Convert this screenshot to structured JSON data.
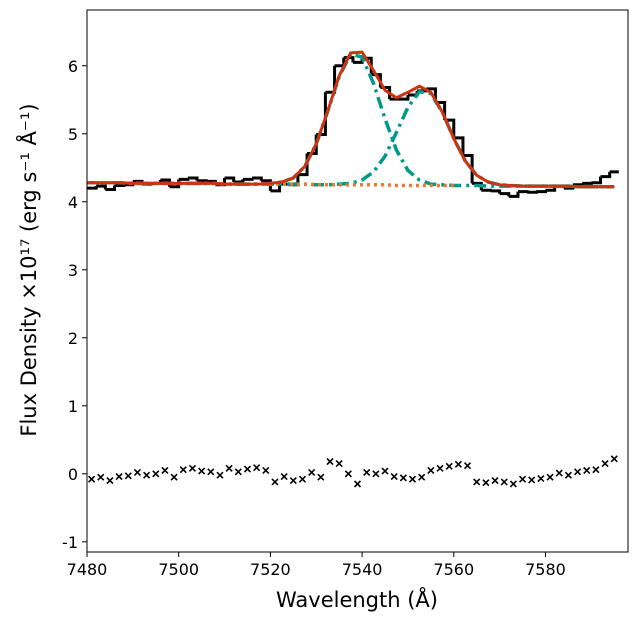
{
  "chart_data": {
    "type": "line",
    "xlabel": "Wavelength (Å)",
    "ylabel": "Flux Density ×10¹⁷ (erg s⁻¹ Å⁻¹)",
    "xlim": [
      7480,
      7598
    ],
    "ylim": [
      -1.15,
      6.82
    ],
    "xticks": [
      7480,
      7500,
      7520,
      7540,
      7560,
      7580
    ],
    "yticks": [
      -1,
      0,
      1,
      2,
      3,
      4,
      5,
      6
    ],
    "grid": false,
    "series": [
      {
        "style": "steps",
        "color": "#000000",
        "x": [
          7481,
          7483,
          7485,
          7487,
          7489,
          7491,
          7493,
          7495,
          7497,
          7499,
          7501,
          7503,
          7505,
          7507,
          7509,
          7511,
          7513,
          7515,
          7517,
          7519,
          7521,
          7523,
          7525,
          7527,
          7529,
          7531,
          7533,
          7535,
          7537,
          7539,
          7541,
          7543,
          7545,
          7547,
          7549,
          7551,
          7553,
          7555,
          7557,
          7559,
          7561,
          7563,
          7565,
          7567,
          7569,
          7571,
          7573,
          7575,
          7577,
          7579,
          7581,
          7583,
          7585,
          7587,
          7589,
          7591,
          7593,
          7595
        ],
        "values": [
          4.2,
          4.23,
          4.18,
          4.24,
          4.25,
          4.3,
          4.26,
          4.27,
          4.32,
          4.22,
          4.33,
          4.35,
          4.31,
          4.3,
          4.25,
          4.35,
          4.29,
          4.33,
          4.35,
          4.31,
          4.16,
          4.26,
          4.25,
          4.4,
          4.71,
          4.99,
          5.61,
          6.0,
          6.12,
          6.05,
          6.11,
          5.87,
          5.68,
          5.51,
          5.51,
          5.57,
          5.63,
          5.66,
          5.46,
          5.2,
          4.94,
          4.68,
          4.27,
          4.17,
          4.16,
          4.12,
          4.08,
          4.15,
          4.14,
          4.15,
          4.17,
          4.23,
          4.2,
          4.25,
          4.27,
          4.28,
          4.37,
          4.44
        ]
      },
      {
        "style": "dashdot",
        "color": "#009988",
        "x": [
          7480,
          7482.5,
          7485,
          7487.5,
          7490,
          7492.5,
          7495,
          7497.5,
          7500,
          7502.5,
          7505,
          7507.5,
          7510,
          7512.5,
          7515,
          7517.5,
          7520,
          7522.5,
          7525,
          7527.5,
          7530,
          7532.5,
          7535,
          7537.5,
          7540,
          7542.5,
          7545,
          7547.5,
          7550,
          7552.5,
          7555,
          7557.5,
          7560,
          7562.5,
          7565,
          7567.5,
          7570,
          7572.5,
          7575,
          7577.5,
          7580,
          7582.5,
          7585,
          7587.5,
          7590,
          7592.5,
          7595
        ],
        "values": [
          4.28,
          4.28,
          4.28,
          4.28,
          4.27,
          4.27,
          4.27,
          4.27,
          4.27,
          4.27,
          4.27,
          4.27,
          4.26,
          4.26,
          4.26,
          4.26,
          4.27,
          4.29,
          4.35,
          4.52,
          4.85,
          5.33,
          5.84,
          6.17,
          6.13,
          5.74,
          5.22,
          4.76,
          4.46,
          4.32,
          4.26,
          4.25,
          4.24,
          4.24,
          4.24,
          4.23,
          4.23,
          4.23,
          4.23,
          4.23,
          4.23,
          4.23,
          4.23,
          4.22,
          4.22,
          4.22,
          4.22
        ]
      },
      {
        "style": "dashdot",
        "color": "#009988",
        "x": [
          7480,
          7482.5,
          7485,
          7487.5,
          7490,
          7492.5,
          7495,
          7497.5,
          7500,
          7502.5,
          7505,
          7507.5,
          7510,
          7512.5,
          7515,
          7517.5,
          7520,
          7522.5,
          7525,
          7527.5,
          7530,
          7532.5,
          7535,
          7537.5,
          7540,
          7542.5,
          7545,
          7547.5,
          7550,
          7552.5,
          7555,
          7557.5,
          7560,
          7562.5,
          7565,
          7567.5,
          7570,
          7572.5,
          7575,
          7577.5,
          7580,
          7582.5,
          7585,
          7587.5,
          7590,
          7592.5,
          7595
        ],
        "values": [
          4.28,
          4.28,
          4.28,
          4.28,
          4.27,
          4.27,
          4.27,
          4.27,
          4.27,
          4.27,
          4.27,
          4.27,
          4.26,
          4.26,
          4.26,
          4.26,
          4.26,
          4.26,
          4.26,
          4.26,
          4.25,
          4.25,
          4.26,
          4.27,
          4.32,
          4.44,
          4.67,
          5.02,
          5.39,
          5.62,
          5.59,
          5.32,
          4.93,
          4.6,
          4.39,
          4.29,
          4.25,
          4.24,
          4.23,
          4.23,
          4.23,
          4.23,
          4.23,
          4.22,
          4.22,
          4.22,
          4.22
        ]
      },
      {
        "style": "dotted",
        "color": "#ee7733",
        "x": [
          7480,
          7482.5,
          7485,
          7487.5,
          7490,
          7492.5,
          7495,
          7497.5,
          7500,
          7502.5,
          7505,
          7507.5,
          7510,
          7512.5,
          7515,
          7517.5,
          7520,
          7522.5,
          7525,
          7527.5,
          7530,
          7532.5,
          7535,
          7537.5,
          7540,
          7542.5,
          7545,
          7547.5,
          7550,
          7552.5,
          7555,
          7557.5,
          7560,
          7562.5,
          7565,
          7567.5,
          7570,
          7572.5,
          7575,
          7577.5,
          7580,
          7582.5,
          7585,
          7587.5,
          7590,
          7592.5,
          7595
        ],
        "values": [
          4.28,
          4.28,
          4.28,
          4.28,
          4.27,
          4.27,
          4.27,
          4.27,
          4.27,
          4.27,
          4.27,
          4.27,
          4.26,
          4.26,
          4.26,
          4.26,
          4.26,
          4.26,
          4.26,
          4.26,
          4.25,
          4.25,
          4.25,
          4.25,
          4.25,
          4.25,
          4.25,
          4.24,
          4.24,
          4.24,
          4.24,
          4.24,
          4.24,
          null,
          null,
          null,
          null,
          null,
          null,
          null,
          null,
          null,
          null,
          null,
          null,
          null,
          null
        ]
      },
      {
        "style": "solid",
        "color": "#cc3311",
        "x": [
          7480,
          7482.5,
          7485,
          7487.5,
          7490,
          7492.5,
          7495,
          7497.5,
          7500,
          7502.5,
          7505,
          7507.5,
          7510,
          7512.5,
          7515,
          7517.5,
          7520,
          7522.5,
          7525,
          7527.5,
          7530,
          7532.5,
          7535,
          7537.5,
          7540,
          7542.5,
          7545,
          7547.5,
          7550,
          7552.5,
          7555,
          7557.5,
          7560,
          7562.5,
          7565,
          7567.5,
          7570,
          7572.5,
          7575,
          7577.5,
          7580,
          7582.5,
          7585,
          7587.5,
          7590,
          7592.5,
          7595
        ],
        "values": [
          4.28,
          4.28,
          4.28,
          4.28,
          4.27,
          4.27,
          4.27,
          4.27,
          4.27,
          4.27,
          4.27,
          4.27,
          4.26,
          4.26,
          4.26,
          4.26,
          4.27,
          4.29,
          4.35,
          4.52,
          4.85,
          5.33,
          5.85,
          6.19,
          6.2,
          5.93,
          5.64,
          5.53,
          5.61,
          5.7,
          5.61,
          5.32,
          4.93,
          4.6,
          4.39,
          4.29,
          4.25,
          4.24,
          4.23,
          4.23,
          4.23,
          4.23,
          4.23,
          4.22,
          4.22,
          4.22,
          4.22
        ]
      },
      {
        "style": "markers",
        "color": "#000000",
        "x": [
          7481,
          7483,
          7485,
          7487,
          7489,
          7491,
          7493,
          7495,
          7497,
          7499,
          7501,
          7503,
          7505,
          7507,
          7509,
          7511,
          7513,
          7515,
          7517,
          7519,
          7521,
          7523,
          7525,
          7527,
          7529,
          7531,
          7533,
          7535,
          7537,
          7539,
          7541,
          7543,
          7545,
          7547,
          7549,
          7551,
          7553,
          7555,
          7557,
          7559,
          7561,
          7563,
          7565,
          7567,
          7569,
          7571,
          7573,
          7575,
          7577,
          7579,
          7581,
          7583,
          7585,
          7587,
          7589,
          7591,
          7593,
          7595
        ],
        "values": [
          -0.08,
          -0.05,
          -0.1,
          -0.04,
          -0.03,
          0.02,
          -0.02,
          0.0,
          0.05,
          -0.05,
          0.06,
          0.08,
          0.04,
          0.03,
          -0.02,
          0.08,
          0.03,
          0.07,
          0.09,
          0.05,
          -0.12,
          -0.04,
          -0.1,
          -0.08,
          0.02,
          -0.05,
          0.18,
          0.15,
          0.0,
          -0.15,
          0.02,
          0.0,
          0.04,
          -0.04,
          -0.06,
          -0.08,
          -0.05,
          0.05,
          0.08,
          0.11,
          0.14,
          0.12,
          -0.12,
          -0.13,
          -0.1,
          -0.12,
          -0.15,
          -0.08,
          -0.09,
          -0.07,
          -0.05,
          0.01,
          -0.02,
          0.03,
          0.05,
          0.06,
          0.15,
          0.22
        ]
      }
    ]
  }
}
